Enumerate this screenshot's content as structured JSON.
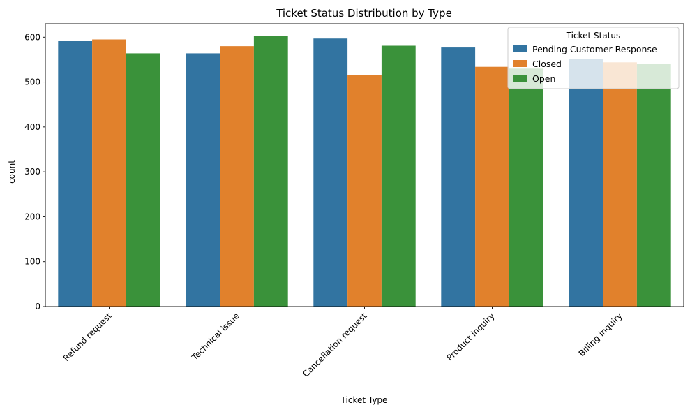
{
  "chart_data": {
    "type": "bar",
    "title": "Ticket Status Distribution by Type",
    "xlabel": "Ticket Type",
    "ylabel": "count",
    "ylim": [
      0,
      630
    ],
    "yticks": [
      0,
      100,
      200,
      300,
      400,
      500,
      600
    ],
    "categories": [
      "Refund request",
      "Technical issue",
      "Cancellation request",
      "Product inquiry",
      "Billing inquiry"
    ],
    "series": [
      {
        "name": "Pending Customer Response",
        "color": "#3274a1",
        "values": [
          592,
          564,
          597,
          577,
          551
        ]
      },
      {
        "name": "Closed",
        "color": "#e1812c",
        "values": [
          595,
          580,
          516,
          534,
          544
        ]
      },
      {
        "name": "Open",
        "color": "#3a923a",
        "values": [
          564,
          602,
          581,
          530,
          540
        ]
      }
    ],
    "legend": {
      "title": "Ticket Status",
      "position": "top-right"
    },
    "grid": false
  }
}
